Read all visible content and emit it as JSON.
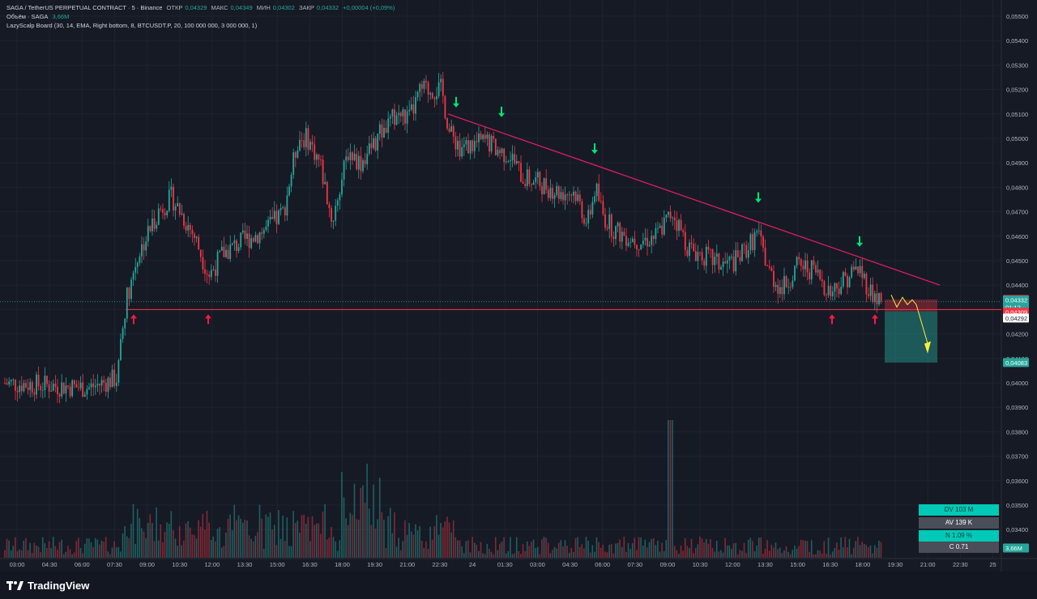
{
  "header": {
    "symbol": "SAGA / TetherUS PERPETUAL CONTRACT · 5 · Binance",
    "open_label": "ОТКР",
    "open": "0,04329",
    "high_label": "МАКС",
    "high": "0,04349",
    "low_label": "МИН",
    "low": "0,04302",
    "close_label": "ЗАКР",
    "close": "0,04332",
    "change": "+0,00004 (+0,09%)",
    "volume_label": "Объём · SAGA",
    "volume": "3,66M",
    "indicator": "LazyScalp Board (30, 14, EMA, Right bottom, 8, BTCUSDT.P, 20, 100 000 000, 3 000 000, 1)"
  },
  "price_axis": {
    "labels": [
      "0,05500",
      "0,05400",
      "0,05300",
      "0,05200",
      "0,05100",
      "0,05000",
      "0,04900",
      "0,04800",
      "0,04700",
      "0,04600",
      "0,04500",
      "0,04400",
      "0,04200",
      "0,04100",
      "0,04000",
      "0,03900",
      "0,03800",
      "0,03700",
      "0,03600",
      "0,03500",
      "0,03400"
    ]
  },
  "price_tags": [
    {
      "text": "0,04341",
      "bg": "#f23645",
      "fg": "#ffffff"
    },
    {
      "text": "0,04332",
      "bg": "#26a69a",
      "fg": "#ffffff"
    },
    {
      "text": "01:12",
      "bg": "#26a69a",
      "fg": "#ffffff"
    },
    {
      "text": "0,04309",
      "bg": "#f23645",
      "fg": "#ffffff"
    },
    {
      "text": "0,04292",
      "bg": "#ffffff",
      "fg": "#131722"
    },
    {
      "text": "0,04083",
      "bg": "#26a69a",
      "fg": "#ffffff"
    },
    {
      "text": "3,66M",
      "bg": "#26a69a",
      "fg": "#ffffff"
    }
  ],
  "time_axis": {
    "labels": [
      "03:00",
      "04:30",
      "06:00",
      "07:30",
      "09:00",
      "10:30",
      "12:00",
      "13:30",
      "15:00",
      "16:30",
      "18:00",
      "19:30",
      "21:00",
      "22:30",
      "24",
      "01:30",
      "03:00",
      "04:30",
      "06:00",
      "07:30",
      "09:00",
      "10:30",
      "12:00",
      "13:30",
      "15:00",
      "16:30",
      "18:00",
      "19:30",
      "21:00",
      "22:30",
      "25"
    ]
  },
  "stats": {
    "dv": "DV 103 M",
    "av": "AV 139 K",
    "n": "N 1.09 %",
    "c": "C  0.71"
  },
  "brand": "TradingView",
  "colors": {
    "bg": "#161a25",
    "up": "#26a69a",
    "down": "#f23645",
    "trendline": "#e91e63",
    "support": "#f23645",
    "arrow_down": "#00e676",
    "arrow_up": "#ff1744",
    "projection": "#ffeb3b"
  },
  "chart_data": {
    "type": "candlestick",
    "interval": "5m",
    "ylim": [
      0.0337,
      0.0557
    ],
    "x": [
      "03:00",
      "04:30",
      "06:00",
      "07:30",
      "09:00",
      "10:30",
      "12:00",
      "13:30",
      "15:00",
      "16:30",
      "18:00",
      "19:30",
      "21:00",
      "22:30",
      "24",
      "01:30",
      "03:00",
      "04:30",
      "06:00",
      "07:30",
      "09:00",
      "10:30",
      "12:00",
      "13:30",
      "15:00",
      "16:30",
      "18:00"
    ],
    "close": [
      0.04,
      0.0401,
      0.0398,
      0.04,
      0.0446,
      0.047,
      0.0452,
      0.046,
      0.0458,
      0.0495,
      0.047,
      0.05,
      0.0502,
      0.0512,
      0.05,
      0.0498,
      0.0482,
      0.0482,
      0.046,
      0.0458,
      0.0465,
      0.045,
      0.0455,
      0.0437,
      0.0447,
      0.0437,
      0.0433
    ],
    "support_level": 0.043,
    "trendline": {
      "from": [
        "22:30",
        0.051
      ],
      "to": [
        "21:00",
        0.044
      ]
    },
    "current_price": 0.04332
  }
}
